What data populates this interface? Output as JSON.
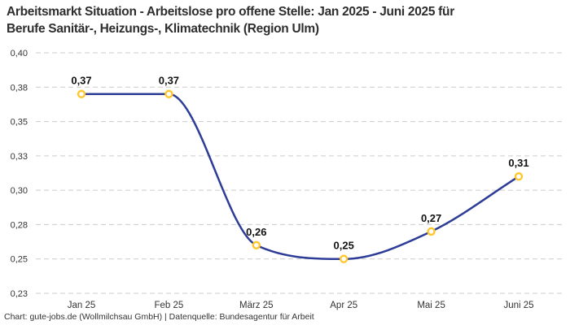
{
  "title": {
    "lines": [
      "Arbeitsmarkt Situation - Arbeitslose pro offene Stelle: Jan 2025 - Juni 2025 für",
      "Berufe Sanitär-, Heizungs-, Klimatechnik (Region Ulm)"
    ],
    "full_text": "Arbeitsmarkt Situation - Arbeitslose pro offene Stelle: Jan 2025 - Juni 2025 für Berufe Sanitär-, Heizungs-, Klimatechnik (Region Ulm)"
  },
  "footer": {
    "text": "Chart: gute-jobs.de (Wollmilchsau GmbH) | Datenquelle: Bundesagentur für Arbeit"
  },
  "chart_data": {
    "type": "line",
    "title": "Arbeitsmarkt Situation - Arbeitslose pro offene Stelle: Jan 2025 - Juni 2025 für Berufe Sanitär-, Heizungs-, Klimatechnik (Region Ulm)",
    "xlabel": "",
    "ylabel": "",
    "categories": [
      "Jan 25",
      "Feb 25",
      "März 25",
      "Apr 25",
      "Mai 25",
      "Juni 25"
    ],
    "values": [
      0.37,
      0.37,
      0.26,
      0.25,
      0.27,
      0.31
    ],
    "point_labels": [
      "0,37",
      "0,37",
      "0,26",
      "0,25",
      "0,27",
      "0,31"
    ],
    "y_ticks": [
      0.225,
      0.25,
      0.275,
      0.3,
      0.325,
      0.35,
      0.375,
      0.4
    ],
    "y_tick_labels": [
      "0,23",
      "0,25",
      "0,28",
      "0,30",
      "0,33",
      "0,35",
      "0,38",
      "0,40"
    ],
    "ylim": [
      0.225,
      0.4
    ],
    "grid": "horizontal-dashed",
    "legend": "none",
    "interpolation": "monotone-cubic",
    "colors": {
      "line": "#2d3c96",
      "marker_stroke": "#ffc72c",
      "marker_fill": "#ffffff",
      "grid": "#cccccc",
      "tick_text": "#333333",
      "point_label_text": "#111111",
      "title_text": "#2e2e2e",
      "background": "#ffffff"
    }
  }
}
